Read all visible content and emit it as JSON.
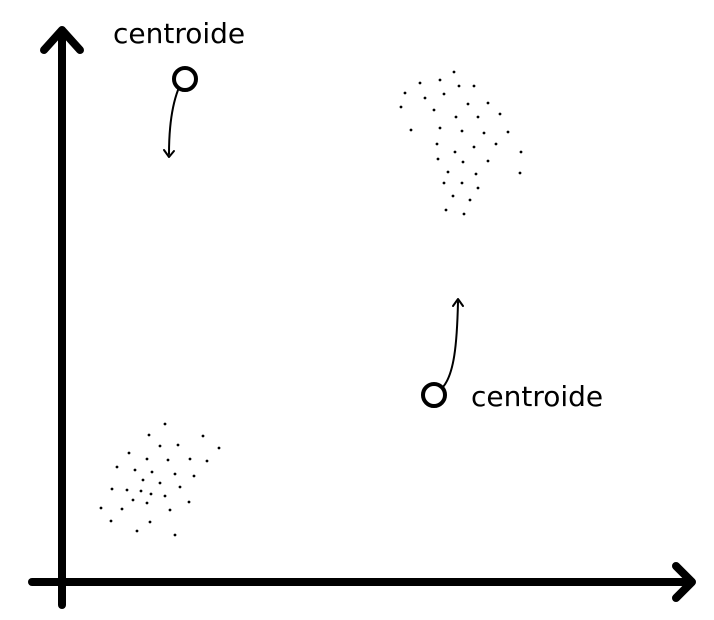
{
  "diagram": {
    "centroid_labels": [
      "centroide",
      "centroide"
    ],
    "colors": {
      "ink": "#000000",
      "background": "#ffffff"
    },
    "icons": [
      "arrow-up-icon",
      "arrow-right-icon",
      "centroid-circle-icon",
      "move-arrow-icon"
    ]
  }
}
